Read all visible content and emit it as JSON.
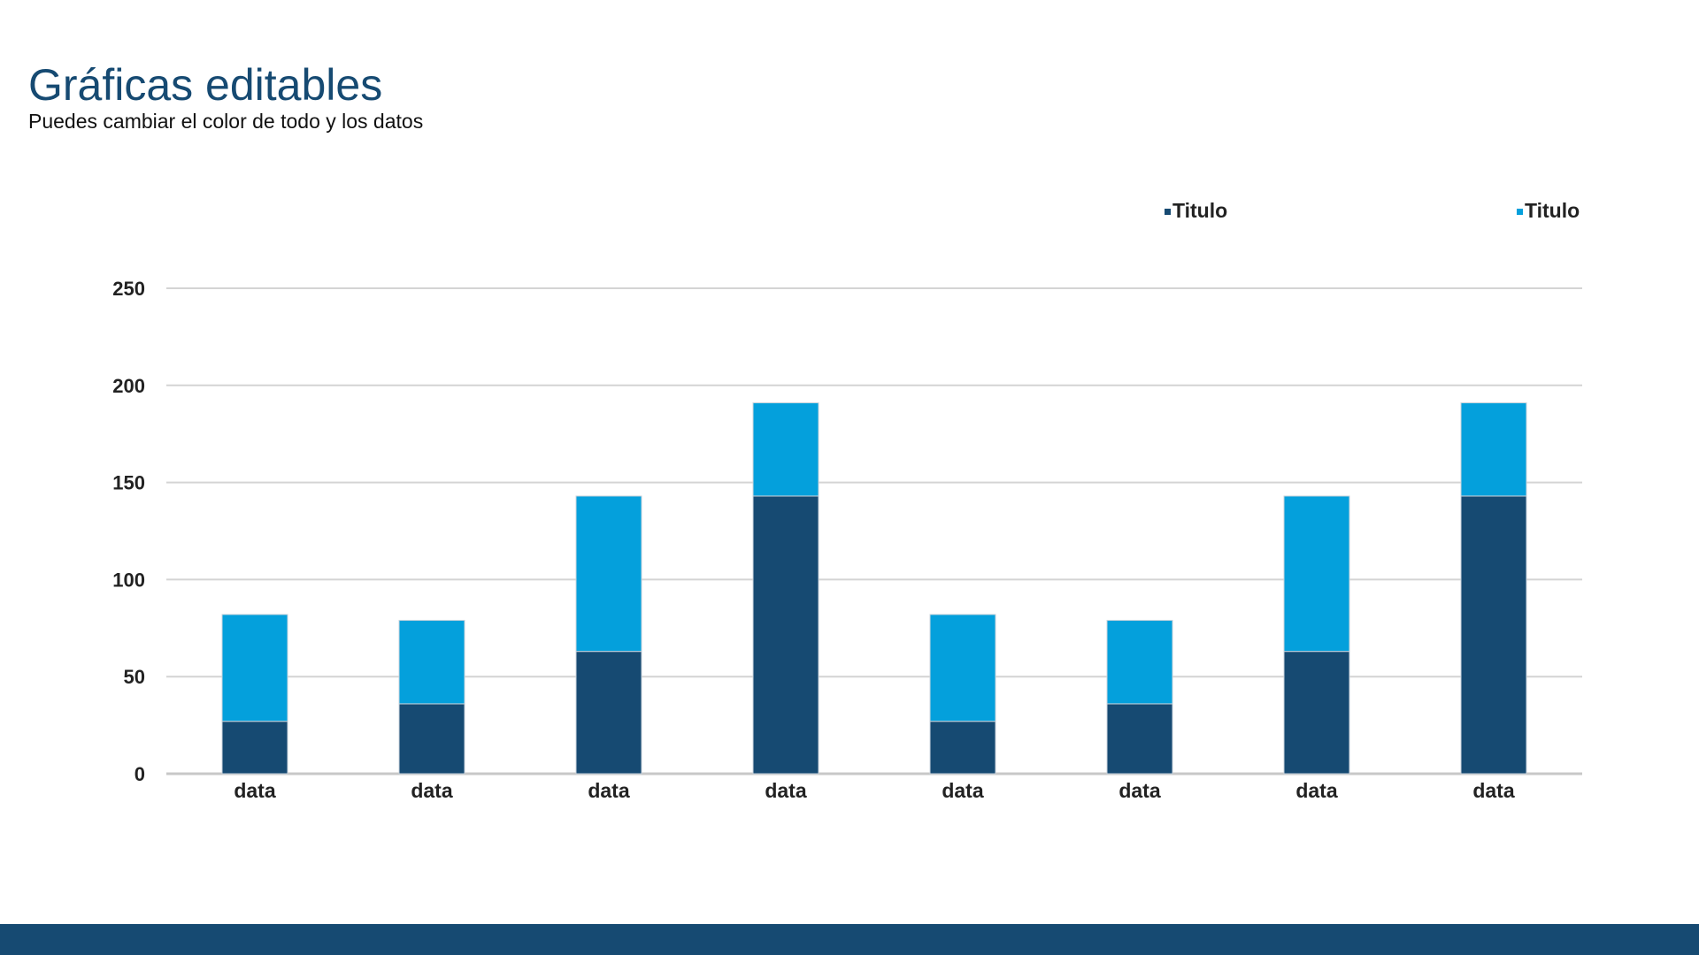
{
  "page": {
    "title": "Gráficas editables",
    "subtitle": "Puedes cambiar el color de todo y los datos"
  },
  "colors": {
    "title": "#164a72",
    "footer": "#164a72"
  },
  "chart_data": {
    "type": "bar",
    "stacked": true,
    "categories": [
      "data",
      "data",
      "data",
      "data",
      "data",
      "data",
      "data",
      "data"
    ],
    "series": [
      {
        "name": "Titulo",
        "color": "#164a72",
        "values": [
          27,
          36,
          63,
          143,
          27,
          36,
          63,
          143
        ]
      },
      {
        "name": "Titulo",
        "color": "#04a0dc",
        "values": [
          55,
          43,
          80,
          48,
          55,
          43,
          80,
          48
        ]
      }
    ],
    "ylim": [
      0,
      250
    ],
    "yticks": [
      0,
      50,
      100,
      150,
      200,
      250
    ],
    "grid": true,
    "legend_position": "top-right",
    "title": "",
    "xlabel": "",
    "ylabel": ""
  }
}
